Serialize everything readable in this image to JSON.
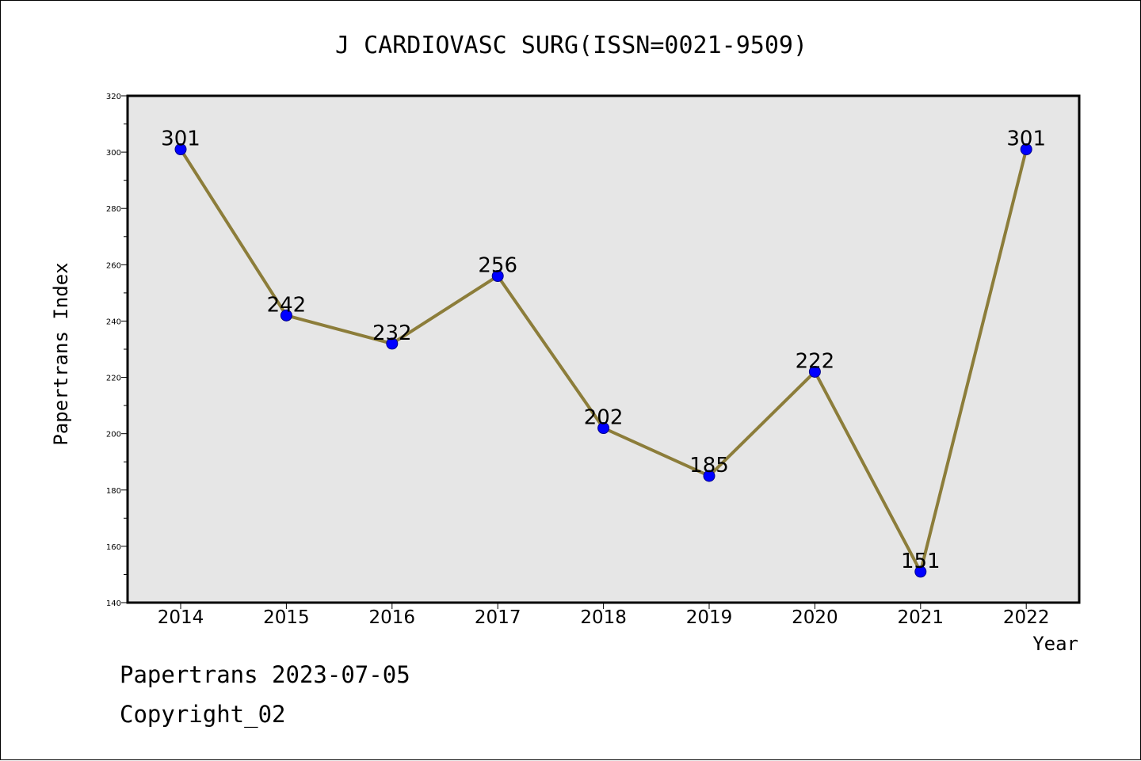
{
  "chart_data": {
    "type": "line",
    "title": "J CARDIOVASC SURG(ISSN=0021-9509)",
    "xlabel": "Year",
    "ylabel": "Papertrans Index",
    "categories": [
      "2014",
      "2015",
      "2016",
      "2017",
      "2018",
      "2019",
      "2020",
      "2021",
      "2022"
    ],
    "series": [
      {
        "values": [
          301,
          242,
          232,
          256,
          202,
          185,
          222,
          151,
          301
        ]
      }
    ],
    "ylim": [
      140,
      320
    ],
    "yticks": [
      140,
      160,
      180,
      200,
      220,
      240,
      260,
      280,
      300,
      320
    ],
    "grid": false,
    "line_color": "#8c7d3a",
    "marker_color": "#0000ff",
    "plot_background": "#e6e6e6"
  },
  "footer": {
    "line1": "Papertrans 2023-07-05",
    "line2": "Copyright_02"
  }
}
